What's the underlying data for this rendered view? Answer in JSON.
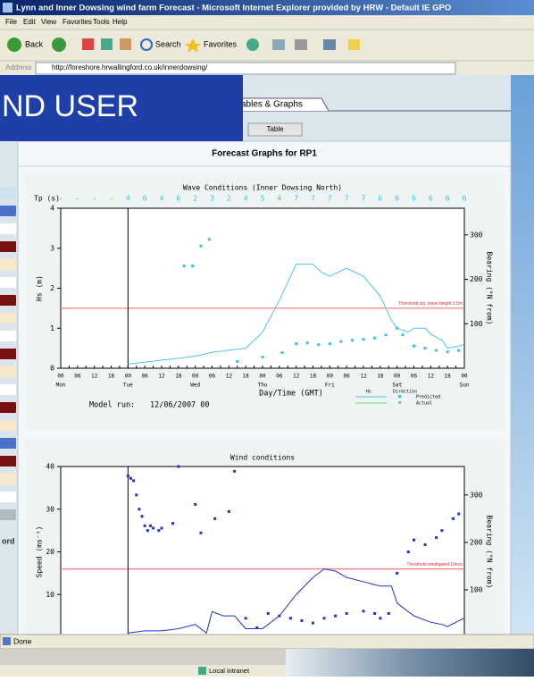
{
  "window": {
    "title": "Lynn and Inner Dowsing wind farm Forecast - Microsoft Internet Explorer provided by HRW - Default IE GPO"
  },
  "menu": [
    "File",
    "Edit",
    "View",
    "Favorites",
    "Tools",
    "Help"
  ],
  "toolbar": [
    "Back",
    "Search",
    "Favorites"
  ],
  "address": {
    "label": "Address",
    "url": "http://foreshore.hrwallingford.co.uk/innerdowsing/"
  },
  "overlay_text": "ND USER",
  "tabs": [
    "ables & Graphs",
    "Table"
  ],
  "panel_title": "Forecast Graphs for RP1",
  "sidebar_text": "ord",
  "days": [
    "Mon",
    "Tue",
    "Wed",
    "Thu",
    "Fri",
    "Sat",
    "Sun"
  ],
  "hour_labels": [
    "00",
    "06",
    "12",
    "18"
  ],
  "charts": [
    {
      "title": "Wave Conditions (Inner Dowsing North)",
      "y_label": "Hs (m)",
      "y2_label": "Bearing (°N from)",
      "x_label": "Day/Time (GMT)",
      "threshold": 1.5,
      "threshold_label": "Threshold sig. wave height 1.5m",
      "tp_label": "Tp (s)",
      "tp": [
        "-",
        "-",
        "-",
        "-",
        "4",
        "6",
        "4",
        "6",
        "2",
        "3",
        "2",
        "4",
        "5",
        "4",
        "7",
        "7",
        "7",
        "7",
        "7",
        "6",
        "6",
        "6",
        "6",
        "6",
        "6"
      ],
      "xlim": [
        0,
        144
      ],
      "ylim": [
        0,
        4
      ],
      "yticks": [
        0,
        1,
        2,
        3,
        4
      ],
      "y2lim": [
        0,
        360
      ],
      "y2ticks": [
        100,
        200,
        300
      ],
      "model_run_x": 24,
      "model_run_label": "Model run:",
      "model_run": "12/06/2007 00",
      "legend": [
        "Hs",
        "Direction",
        "Predicted",
        "Actual"
      ],
      "hs": {
        "x": [
          24,
          30,
          36,
          42,
          48,
          54,
          60,
          66,
          72,
          78,
          84,
          90,
          93,
          96,
          102,
          108,
          114,
          118,
          120,
          124,
          126,
          130,
          132,
          136,
          138,
          142,
          144
        ],
        "values": [
          0.1,
          0.15,
          0.2,
          0.25,
          0.3,
          0.4,
          0.45,
          0.5,
          0.9,
          1.7,
          2.6,
          2.6,
          2.4,
          2.3,
          2.5,
          2.3,
          1.8,
          1.2,
          1.0,
          0.9,
          1.0,
          1.0,
          0.85,
          0.7,
          0.5,
          0.55,
          0.6
        ]
      },
      "direction": {
        "x": [
          44,
          47,
          50,
          53,
          63,
          72,
          79,
          84,
          88,
          92,
          96,
          100,
          104,
          108,
          112,
          116,
          120,
          122,
          126,
          130,
          134,
          138,
          142
        ],
        "values": [
          230,
          230,
          275,
          290,
          15,
          25,
          35,
          55,
          57,
          53,
          55,
          60,
          63,
          65,
          68,
          75,
          90,
          75,
          50,
          45,
          40,
          37,
          40
        ]
      }
    },
    {
      "title": "Wind conditions",
      "y_label": "Speed (ms⁻¹)",
      "y2_label": "Bearing (°N from)",
      "threshold": 16,
      "threshold_label": "Threshold windspeed 16m/s",
      "xlim": [
        0,
        144
      ],
      "ylim": [
        0,
        40
      ],
      "yticks": [
        10,
        20,
        30,
        40
      ],
      "y2lim": [
        0,
        360
      ],
      "y2ticks": [
        100,
        200,
        300
      ],
      "model_run_x": 24,
      "speed": {
        "x": [
          24,
          30,
          36,
          42,
          48,
          52,
          54,
          58,
          62,
          66,
          72,
          78,
          84,
          90,
          94,
          98,
          102,
          108,
          114,
          118,
          120,
          126,
          132,
          136,
          138,
          144
        ],
        "values": [
          1,
          1.5,
          1.5,
          2,
          3,
          1,
          6,
          5,
          5,
          2,
          2,
          5,
          10,
          14,
          16,
          15.5,
          14,
          13,
          12,
          12,
          8,
          5,
          3.5,
          3,
          2.5,
          4.5
        ]
      },
      "direction": {
        "x": [
          24,
          25,
          26,
          27,
          28,
          29,
          30,
          31,
          32,
          33,
          35,
          36,
          40,
          42,
          48,
          50,
          55,
          60,
          62,
          66,
          70,
          74,
          78,
          82,
          86,
          90,
          94,
          98,
          102,
          108,
          112,
          114,
          117,
          120,
          124,
          126,
          130,
          134,
          136,
          140,
          142
        ],
        "values": [
          340,
          335,
          330,
          300,
          270,
          255,
          235,
          225,
          235,
          230,
          225,
          230,
          240,
          360,
          280,
          220,
          250,
          265,
          350,
          40,
          20,
          50,
          45,
          40,
          35,
          30,
          40,
          45,
          50,
          55,
          50,
          40,
          50,
          135,
          180,
          205,
          195,
          210,
          225,
          250,
          260
        ]
      }
    }
  ],
  "status": {
    "done": "Done",
    "zone": "Local intranet"
  }
}
